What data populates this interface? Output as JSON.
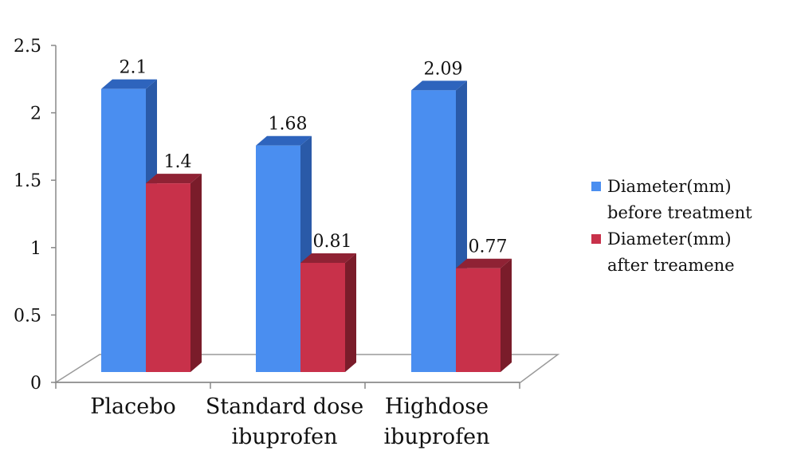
{
  "chart_data": {
    "type": "bar",
    "categories": [
      [
        "Placebo"
      ],
      [
        "Standard dose",
        "ibuprofen"
      ],
      [
        "Highdose",
        "ibuprofen"
      ]
    ],
    "series": [
      {
        "name": [
          "Diameter(mm)",
          "before treatment"
        ],
        "values": [
          2.1,
          1.68,
          2.09
        ],
        "color": "#4A8EF0",
        "side_color": "#2A5AA8",
        "top_color": "#2E64BD"
      },
      {
        "name": [
          "Diameter(mm)",
          "after treamene"
        ],
        "values": [
          1.4,
          0.81,
          0.77
        ],
        "color": "#C8314A",
        "side_color": "#7A1C2A",
        "top_color": "#8F2234"
      }
    ],
    "data_labels": [
      [
        "2.1",
        "1.68",
        "2.09"
      ],
      [
        "1.4",
        "0.81",
        "0.77"
      ]
    ],
    "y_ticks": [
      "0",
      "0.5",
      "1",
      "1.5",
      "2",
      "2.5"
    ],
    "ylim": [
      0,
      2.5
    ],
    "legend_position": "right",
    "grid": false,
    "style": "3d-clustered-column"
  }
}
